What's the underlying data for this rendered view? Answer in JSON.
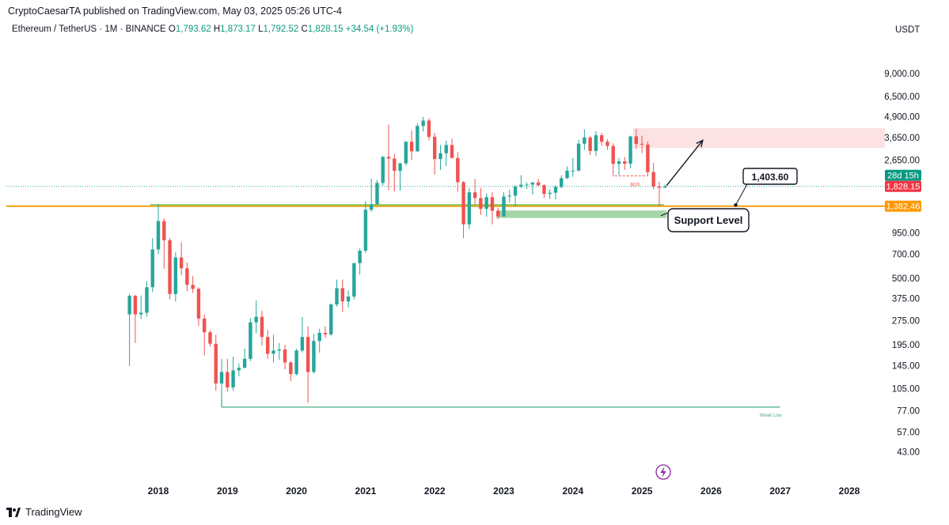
{
  "publisher_line": "CryptoCaesarTA published on TradingView.com, May 03, 2025 05:26 UTC-4",
  "legend": {
    "symbol": "Ethereum / TetherUS · 1M · BINANCE",
    "o_label": "O",
    "o": "1,793.62",
    "h_label": "H",
    "h": "1,873.17",
    "l_label": "L",
    "l": "1,792.52",
    "c_label": "C",
    "c": "1,828.15",
    "change": "+34.54 (+1.93%)"
  },
  "currency": "USDT",
  "brand": "TradingView",
  "colors": {
    "up": "#26a69a",
    "down": "#ef5350",
    "support_line": "#f59e0b",
    "support_zone_green": "#a5d6a7",
    "resistance_zone": "#fde2e4",
    "weak_low_line": "#4caf85",
    "accent_purple": "#8e24aa"
  },
  "chart_data": {
    "type": "candlestick",
    "symbol": "ETHUSDT",
    "timeframe": "1M",
    "y_scale": "log",
    "ylim": [
      35,
      13000
    ],
    "y_ticks": [
      "9,000.00",
      "6,500.00",
      "4,900.00",
      "3,650.00",
      "2,650.00",
      "950.00",
      "700.00",
      "500.00",
      "375.00",
      "275.00",
      "195.00",
      "145.00",
      "105.00",
      "77.00",
      "57.00",
      "43.00"
    ],
    "x_ticks": [
      "2018",
      "2019",
      "2020",
      "2021",
      "2022",
      "2023",
      "2024",
      "2025",
      "2026",
      "2027",
      "2028"
    ],
    "price_badges": [
      {
        "text": "28d 15h",
        "value": 1828,
        "color": "#089981"
      },
      {
        "text": "1,828.15",
        "value": 1828.15,
        "color": "#f23645"
      },
      {
        "text": "1,382.46",
        "value": 1382.46,
        "color": "#ff9800"
      }
    ],
    "candles": [
      {
        "date": "2017-08",
        "o": 300,
        "h": 400,
        "l": 145,
        "c": 390
      },
      {
        "date": "2017-09",
        "o": 390,
        "h": 395,
        "l": 200,
        "c": 300
      },
      {
        "date": "2017-10",
        "o": 300,
        "h": 390,
        "l": 280,
        "c": 307
      },
      {
        "date": "2017-11",
        "o": 307,
        "h": 480,
        "l": 290,
        "c": 440
      },
      {
        "date": "2017-12",
        "o": 440,
        "h": 880,
        "l": 410,
        "c": 750
      },
      {
        "date": "2018-01",
        "o": 750,
        "h": 1420,
        "l": 700,
        "c": 1120
      },
      {
        "date": "2018-02",
        "o": 1120,
        "h": 1160,
        "l": 570,
        "c": 855
      },
      {
        "date": "2018-03",
        "o": 855,
        "h": 880,
        "l": 370,
        "c": 400
      },
      {
        "date": "2018-04",
        "o": 400,
        "h": 720,
        "l": 360,
        "c": 670
      },
      {
        "date": "2018-05",
        "o": 670,
        "h": 830,
        "l": 520,
        "c": 575
      },
      {
        "date": "2018-06",
        "o": 575,
        "h": 625,
        "l": 415,
        "c": 455
      },
      {
        "date": "2018-07",
        "o": 455,
        "h": 515,
        "l": 405,
        "c": 430
      },
      {
        "date": "2018-08",
        "o": 430,
        "h": 440,
        "l": 255,
        "c": 283
      },
      {
        "date": "2018-09",
        "o": 283,
        "h": 300,
        "l": 168,
        "c": 233
      },
      {
        "date": "2018-10",
        "o": 233,
        "h": 240,
        "l": 190,
        "c": 198
      },
      {
        "date": "2018-11",
        "o": 198,
        "h": 225,
        "l": 102,
        "c": 113
      },
      {
        "date": "2018-12",
        "o": 113,
        "h": 160,
        "l": 81,
        "c": 133
      },
      {
        "date": "2019-01",
        "o": 133,
        "h": 160,
        "l": 101,
        "c": 107
      },
      {
        "date": "2019-02",
        "o": 107,
        "h": 165,
        "l": 102,
        "c": 136
      },
      {
        "date": "2019-03",
        "o": 136,
        "h": 150,
        "l": 125,
        "c": 141
      },
      {
        "date": "2019-04",
        "o": 141,
        "h": 185,
        "l": 140,
        "c": 160
      },
      {
        "date": "2019-05",
        "o": 160,
        "h": 285,
        "l": 155,
        "c": 268
      },
      {
        "date": "2019-06",
        "o": 268,
        "h": 365,
        "l": 230,
        "c": 290
      },
      {
        "date": "2019-07",
        "o": 290,
        "h": 315,
        "l": 193,
        "c": 218
      },
      {
        "date": "2019-08",
        "o": 218,
        "h": 240,
        "l": 160,
        "c": 172
      },
      {
        "date": "2019-09",
        "o": 172,
        "h": 225,
        "l": 152,
        "c": 180
      },
      {
        "date": "2019-10",
        "o": 180,
        "h": 200,
        "l": 158,
        "c": 183
      },
      {
        "date": "2019-11",
        "o": 183,
        "h": 195,
        "l": 138,
        "c": 152
      },
      {
        "date": "2019-12",
        "o": 152,
        "h": 155,
        "l": 117,
        "c": 129
      },
      {
        "date": "2020-01",
        "o": 129,
        "h": 185,
        "l": 127,
        "c": 180
      },
      {
        "date": "2020-02",
        "o": 180,
        "h": 288,
        "l": 175,
        "c": 218
      },
      {
        "date": "2020-03",
        "o": 218,
        "h": 253,
        "l": 86,
        "c": 133
      },
      {
        "date": "2020-04",
        "o": 133,
        "h": 228,
        "l": 130,
        "c": 206
      },
      {
        "date": "2020-05",
        "o": 206,
        "h": 245,
        "l": 175,
        "c": 231
      },
      {
        "date": "2020-06",
        "o": 231,
        "h": 253,
        "l": 215,
        "c": 226
      },
      {
        "date": "2020-07",
        "o": 226,
        "h": 350,
        "l": 222,
        "c": 345
      },
      {
        "date": "2020-08",
        "o": 345,
        "h": 490,
        "l": 335,
        "c": 434
      },
      {
        "date": "2020-09",
        "o": 434,
        "h": 490,
        "l": 310,
        "c": 360
      },
      {
        "date": "2020-10",
        "o": 360,
        "h": 420,
        "l": 330,
        "c": 386
      },
      {
        "date": "2020-11",
        "o": 386,
        "h": 620,
        "l": 370,
        "c": 618
      },
      {
        "date": "2020-12",
        "o": 618,
        "h": 760,
        "l": 525,
        "c": 737
      },
      {
        "date": "2021-01",
        "o": 737,
        "h": 1480,
        "l": 715,
        "c": 1314
      },
      {
        "date": "2021-02",
        "o": 1314,
        "h": 2040,
        "l": 1280,
        "c": 1418
      },
      {
        "date": "2021-03",
        "o": 1418,
        "h": 2000,
        "l": 1440,
        "c": 1919
      },
      {
        "date": "2021-04",
        "o": 1919,
        "h": 2800,
        "l": 1850,
        "c": 2773
      },
      {
        "date": "2021-05",
        "o": 2773,
        "h": 4380,
        "l": 1740,
        "c": 2707
      },
      {
        "date": "2021-06",
        "o": 2707,
        "h": 2890,
        "l": 1700,
        "c": 2275
      },
      {
        "date": "2021-07",
        "o": 2275,
        "h": 2550,
        "l": 1720,
        "c": 2530
      },
      {
        "date": "2021-08",
        "o": 2530,
        "h": 3470,
        "l": 2450,
        "c": 3430
      },
      {
        "date": "2021-09",
        "o": 3430,
        "h": 4030,
        "l": 2650,
        "c": 3000
      },
      {
        "date": "2021-10",
        "o": 3000,
        "h": 4460,
        "l": 2970,
        "c": 4288
      },
      {
        "date": "2021-11",
        "o": 4288,
        "h": 4870,
        "l": 3970,
        "c": 4630
      },
      {
        "date": "2021-12",
        "o": 4630,
        "h": 4780,
        "l": 3500,
        "c": 3680
      },
      {
        "date": "2022-01",
        "o": 3680,
        "h": 3900,
        "l": 2160,
        "c": 2690
      },
      {
        "date": "2022-02",
        "o": 2690,
        "h": 3280,
        "l": 2300,
        "c": 2920
      },
      {
        "date": "2022-03",
        "o": 2920,
        "h": 3480,
        "l": 2440,
        "c": 3280
      },
      {
        "date": "2022-04",
        "o": 3280,
        "h": 3580,
        "l": 2710,
        "c": 2730
      },
      {
        "date": "2022-05",
        "o": 2730,
        "h": 2960,
        "l": 1700,
        "c": 1940
      },
      {
        "date": "2022-06",
        "o": 1940,
        "h": 1970,
        "l": 880,
        "c": 1070
      },
      {
        "date": "2022-07",
        "o": 1070,
        "h": 1780,
        "l": 1000,
        "c": 1680
      },
      {
        "date": "2022-08",
        "o": 1680,
        "h": 2030,
        "l": 1420,
        "c": 1550
      },
      {
        "date": "2022-09",
        "o": 1550,
        "h": 1790,
        "l": 1220,
        "c": 1330
      },
      {
        "date": "2022-10",
        "o": 1330,
        "h": 1660,
        "l": 1190,
        "c": 1570
      },
      {
        "date": "2022-11",
        "o": 1570,
        "h": 1680,
        "l": 1070,
        "c": 1295
      },
      {
        "date": "2022-12",
        "o": 1295,
        "h": 1350,
        "l": 1150,
        "c": 1197
      },
      {
        "date": "2023-01",
        "o": 1197,
        "h": 1680,
        "l": 1190,
        "c": 1585
      },
      {
        "date": "2023-02",
        "o": 1585,
        "h": 1740,
        "l": 1460,
        "c": 1605
      },
      {
        "date": "2023-03",
        "o": 1605,
        "h": 1860,
        "l": 1370,
        "c": 1822
      },
      {
        "date": "2023-04",
        "o": 1822,
        "h": 2140,
        "l": 1780,
        "c": 1869
      },
      {
        "date": "2023-05",
        "o": 1869,
        "h": 1930,
        "l": 1760,
        "c": 1874
      },
      {
        "date": "2023-06",
        "o": 1874,
        "h": 1930,
        "l": 1630,
        "c": 1934
      },
      {
        "date": "2023-07",
        "o": 1934,
        "h": 2030,
        "l": 1830,
        "c": 1857
      },
      {
        "date": "2023-08",
        "o": 1857,
        "h": 1880,
        "l": 1550,
        "c": 1645
      },
      {
        "date": "2023-09",
        "o": 1645,
        "h": 1750,
        "l": 1530,
        "c": 1671
      },
      {
        "date": "2023-10",
        "o": 1671,
        "h": 1860,
        "l": 1520,
        "c": 1815
      },
      {
        "date": "2023-11",
        "o": 1815,
        "h": 2140,
        "l": 1780,
        "c": 2052
      },
      {
        "date": "2023-12",
        "o": 2052,
        "h": 2420,
        "l": 2030,
        "c": 2282
      },
      {
        "date": "2024-01",
        "o": 2282,
        "h": 2720,
        "l": 2100,
        "c": 2283
      },
      {
        "date": "2024-02",
        "o": 2283,
        "h": 3520,
        "l": 2260,
        "c": 3340
      },
      {
        "date": "2024-03",
        "o": 3340,
        "h": 4090,
        "l": 3060,
        "c": 3647
      },
      {
        "date": "2024-04",
        "o": 3647,
        "h": 3730,
        "l": 2850,
        "c": 3015
      },
      {
        "date": "2024-05",
        "o": 3015,
        "h": 3980,
        "l": 2820,
        "c": 3763
      },
      {
        "date": "2024-06",
        "o": 3763,
        "h": 3890,
        "l": 3240,
        "c": 3434
      },
      {
        "date": "2024-07",
        "o": 3434,
        "h": 3560,
        "l": 3060,
        "c": 3232
      },
      {
        "date": "2024-08",
        "o": 3232,
        "h": 3350,
        "l": 2110,
        "c": 2512
      },
      {
        "date": "2024-09",
        "o": 2512,
        "h": 2730,
        "l": 2150,
        "c": 2602
      },
      {
        "date": "2024-10",
        "o": 2602,
        "h": 2770,
        "l": 2310,
        "c": 2518
      },
      {
        "date": "2024-11",
        "o": 2518,
        "h": 3740,
        "l": 2360,
        "c": 3700
      },
      {
        "date": "2024-12",
        "o": 3700,
        "h": 4110,
        "l": 3100,
        "c": 3332
      },
      {
        "date": "2025-01",
        "o": 3332,
        "h": 3745,
        "l": 2920,
        "c": 3300
      },
      {
        "date": "2025-02",
        "o": 3300,
        "h": 3450,
        "l": 2120,
        "c": 2237
      },
      {
        "date": "2025-03",
        "o": 2237,
        "h": 2550,
        "l": 1750,
        "c": 1822
      },
      {
        "date": "2025-04",
        "o": 1822,
        "h": 1950,
        "l": 1385,
        "c": 1794
      },
      {
        "date": "2025-05",
        "o": 1793.62,
        "h": 1873.17,
        "l": 1792.52,
        "c": 1828.15
      }
    ],
    "annotations": {
      "support_line": {
        "value": 1382.46,
        "from": "2017-12",
        "label": "1,382.46"
      },
      "target_callout": {
        "text": "1,403.60",
        "value": 1403.6,
        "date": "2026-05"
      },
      "support_label": {
        "text": "Support Level",
        "date": "2025-04",
        "value": 1382.46
      },
      "support_zone": {
        "from": "2022-12",
        "to": "2025-05",
        "low": 1170,
        "high": 1300
      },
      "resistance_zone": {
        "from": "2024-12",
        "to": "2028-02",
        "low": 3140,
        "high": 4160
      },
      "bos": {
        "text": "BOS",
        "value": 2120,
        "from": "2024-08",
        "to": "2025-02"
      },
      "projection_arrow": {
        "from_date": "2025-05",
        "from_value": 1828,
        "to_date": "2025-11",
        "to_value": 3350
      },
      "weak_low": {
        "text": "Weak Low",
        "value": 81,
        "from": "2018-12",
        "to": "2027-01"
      }
    }
  }
}
